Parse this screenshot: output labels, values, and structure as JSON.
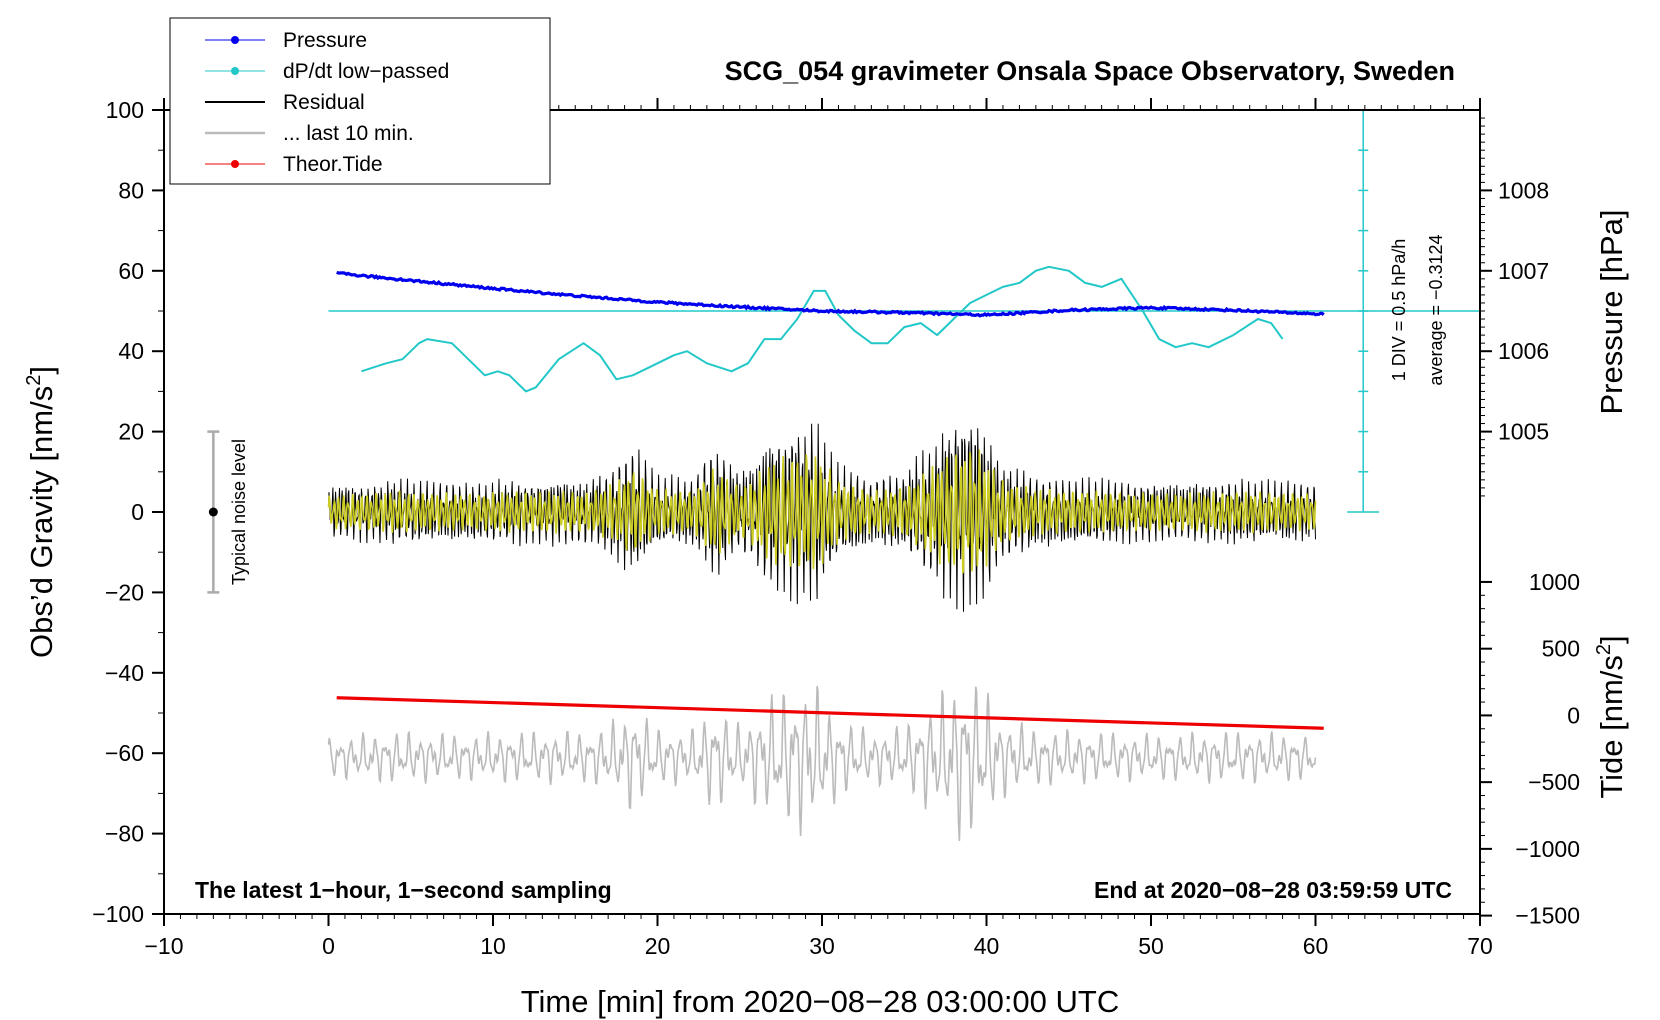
{
  "chart_data": {
    "type": "line",
    "title": "SCG_054 gravimeter Onsala Space Observatory, Sweden",
    "xlabel": "Time [min] from 2020−08−28 03:00:00 UTC",
    "ylabel": "Obs’d Gravity [nm/s",
    "ylabel_sup": "2",
    "ylabel_end": "]",
    "xlim": [
      -10,
      70
    ],
    "ylim": [
      -100,
      100
    ],
    "x_ticks": [
      -10,
      0,
      10,
      20,
      30,
      40,
      50,
      60,
      70
    ],
    "x_tick_labels": [
      "−10",
      "0",
      "10",
      "20",
      "30",
      "40",
      "50",
      "60",
      "70"
    ],
    "y_ticks": [
      -100,
      -80,
      -60,
      -40,
      -20,
      0,
      20,
      40,
      60,
      80,
      100
    ],
    "y_tick_labels": [
      "−100",
      "−80",
      "−60",
      "−40",
      "−20",
      "0",
      "20",
      "40",
      "60",
      "80",
      "100"
    ],
    "pressure_axis": {
      "label": "Pressure [hPa]",
      "ticks": [
        1005,
        1006,
        1007,
        1008
      ],
      "tick_labels": [
        "1005",
        "1006",
        "1007",
        "1008"
      ],
      "scale_gravity_at_1005": 20,
      "gravity_per_hpa": 20
    },
    "tide_axis": {
      "label": "Tide [nm/s",
      "label_sup": "2",
      "label_end": "]",
      "ticks": [
        -1500,
        -1000,
        -500,
        0,
        500,
        1000
      ],
      "tick_labels": [
        "−1500",
        "−1000",
        "−500",
        "0",
        "500",
        "1000"
      ],
      "gravity_at_zero_tide": -50.6,
      "gravity_per_nms2": 0.0332
    },
    "dpdt_scale": {
      "baseline_gravity": 0,
      "reference_gravity": 50,
      "div_gravity": 10,
      "divisions": 10,
      "x_position_min": 62.9,
      "label_div": "1 DIV = 0.5 hPa/h",
      "label_avg": "average = −0.3124"
    },
    "noise_bar": {
      "label": "Typical noise level",
      "x": -7,
      "center": 0,
      "half_range": 20
    },
    "series": [
      {
        "name": "Pressure",
        "color": "#0000ee",
        "unit": "hPa",
        "x": [
          0.5,
          5,
          10,
          15,
          20,
          25,
          30,
          35,
          40,
          45,
          50,
          55,
          60.5
        ],
        "values": [
          1006.97,
          1006.88,
          1006.78,
          1006.69,
          1006.61,
          1006.55,
          1006.5,
          1006.48,
          1006.45,
          1006.51,
          1006.54,
          1006.51,
          1006.46
        ]
      },
      {
        "name": "dP/dt low−passed",
        "color": "#22c8c8",
        "unit": "gravity-scale",
        "x": [
          2,
          3.5,
          4.5,
          5.5,
          6,
          7.5,
          8.5,
          9.5,
          10.3,
          11,
          12,
          12.6,
          14,
          15.5,
          16.5,
          17.5,
          18.5,
          20,
          21,
          21.8,
          23,
          24.5,
          25.5,
          26.5,
          27.5,
          28.5,
          29.5,
          30.2,
          31,
          32,
          33,
          34,
          35,
          36,
          37,
          38,
          39,
          40,
          41,
          42,
          43,
          43.8,
          45,
          46,
          47,
          48.2,
          49.5,
          50.5,
          51.5,
          52.5,
          53.5,
          55,
          56.5,
          57.3,
          58
        ],
        "values": [
          35,
          37,
          38,
          42,
          43,
          42,
          38,
          34,
          35,
          34,
          30,
          31,
          38,
          42,
          39,
          33,
          34,
          37,
          39,
          40,
          37,
          35,
          37,
          43,
          43,
          48,
          55,
          55,
          49,
          45,
          42,
          42,
          46,
          47,
          44,
          48,
          52,
          54,
          56,
          57,
          60,
          61,
          60,
          57,
          56,
          58,
          50,
          43,
          41,
          42,
          41,
          44,
          48,
          47,
          43
        ]
      },
      {
        "name": "Residual",
        "color": "#000000",
        "unit": "nm/s²"
      },
      {
        "name": "... last 10 min.",
        "color": "#bbbbbb",
        "unit": "nm/s²"
      },
      {
        "name": "Theor.Tide",
        "color": "#ee0000",
        "unit": "nm/s²",
        "x": [
          0.5,
          60.5
        ],
        "values": [
          -46.2,
          -53.8
        ]
      }
    ],
    "filtered_series": {
      "name": "filtered residual",
      "color": "#cccc22"
    },
    "envelope": {
      "x": [
        0,
        4,
        8,
        12,
        16,
        17.5,
        18.5,
        20,
        22,
        23.5,
        25,
        27,
        28.5,
        29.5,
        31,
        33,
        35,
        37,
        38.5,
        39.5,
        41,
        43,
        46,
        50,
        55,
        60
      ],
      "amplitude": [
        7,
        9,
        8,
        9,
        9,
        13,
        19,
        10,
        9,
        19,
        11,
        22,
        26,
        26,
        14,
        9,
        11,
        21,
        29,
        27,
        14,
        10,
        9,
        8,
        9,
        8
      ]
    },
    "annotations": {
      "bottom_left": "The latest 1−hour, 1−second sampling",
      "bottom_right": "End at 2020−08−28 03:59:59 UTC"
    },
    "legend": {
      "placement": "top-left",
      "entries": [
        "Pressure",
        "dP/dt low−passed",
        "Residual",
        "... last 10 min.",
        "Theor.Tide"
      ]
    }
  }
}
